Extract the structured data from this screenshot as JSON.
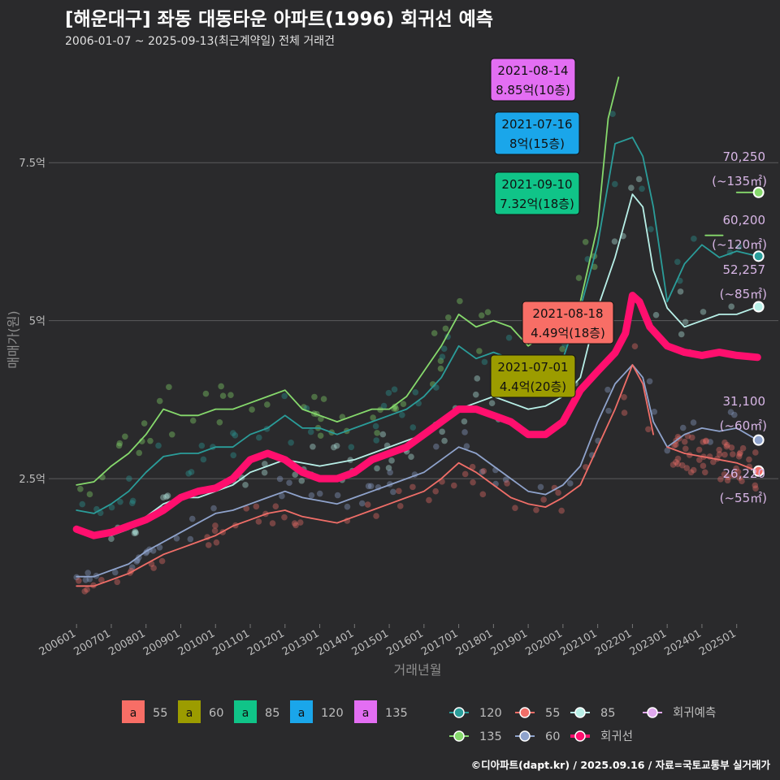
{
  "header": {
    "title": "[해운대구] 좌동 대동타운 아파트(1996) 회귀선 예측",
    "subtitle": "2006-01-07 ~ 2025-09-13(최근계약일) 전체 거래건",
    "credit": "©디아파트(dapt.kr) / 2025.09.16 / 자료=국토교통부 실거래가"
  },
  "chart_data": {
    "type": "line",
    "xlabel": "거래년월",
    "ylabel": "매매가(원)",
    "x_ticks": [
      "200601",
      "200701",
      "200801",
      "200901",
      "201001",
      "201101",
      "201201",
      "201301",
      "201401",
      "201501",
      "201601",
      "201701",
      "201801",
      "201901",
      "202001",
      "202101",
      "202201",
      "202301",
      "202401",
      "202501"
    ],
    "y_ticks": [
      {
        "value": 2.5,
        "label": "2.5억"
      },
      {
        "value": 5,
        "label": "5억"
      },
      {
        "value": 7.5,
        "label": "7.5억"
      }
    ],
    "ylim": [
      0.2,
      9.2
    ],
    "xlim": [
      2005.2,
      2026.2
    ],
    "series": [
      {
        "name": "135",
        "color": "#86d96c",
        "x": [
          2006.0,
          2006.5,
          2007.0,
          2007.5,
          2008.0,
          2008.5,
          2009.0,
          2009.5,
          2010.0,
          2010.5,
          2011.0,
          2011.5,
          2012.0,
          2012.5,
          2013.0,
          2013.5,
          2014.0,
          2014.5,
          2015.0,
          2015.5,
          2016.0,
          2016.5,
          2017.0,
          2017.5,
          2018.0,
          2018.5,
          2019.0,
          2019.5,
          2020.0,
          2020.5,
          2021.0,
          2021.3,
          2021.6
        ],
        "y": [
          2.4,
          2.45,
          2.7,
          2.9,
          3.2,
          3.6,
          3.5,
          3.5,
          3.6,
          3.6,
          3.7,
          3.8,
          3.9,
          3.6,
          3.5,
          3.4,
          3.5,
          3.6,
          3.6,
          3.8,
          4.2,
          4.6,
          5.1,
          4.9,
          5.0,
          4.9,
          4.6,
          4.8,
          4.8,
          5.3,
          6.5,
          8.2,
          8.85
        ]
      },
      {
        "name": "135",
        "color": "#86d96c",
        "x": [
          2024.1,
          2024.6
        ],
        "y": [
          6.35,
          6.35
        ]
      },
      {
        "name": "135",
        "color": "#86d96c",
        "x": [
          2025.0,
          2025.6
        ],
        "y": [
          7.03,
          7.03
        ]
      },
      {
        "name": "120",
        "color": "#2a9d9a",
        "x": [
          2006.0,
          2006.5,
          2007.0,
          2007.5,
          2008.0,
          2008.5,
          2009.0,
          2009.5,
          2010.0,
          2010.5,
          2011.0,
          2011.5,
          2012.0,
          2012.5,
          2013.0,
          2013.5,
          2014.0,
          2014.5,
          2015.0,
          2015.5,
          2016.0,
          2016.5,
          2017.0,
          2017.5,
          2018.0,
          2018.5,
          2019.0,
          2019.5,
          2020.0,
          2020.5,
          2021.0,
          2021.5,
          2022.0,
          2022.3,
          2022.6,
          2023.0,
          2023.5,
          2024.0,
          2024.5,
          2025.0,
          2025.6
        ],
        "y": [
          2.0,
          1.95,
          2.1,
          2.3,
          2.6,
          2.85,
          2.9,
          2.9,
          3.0,
          3.0,
          3.2,
          3.3,
          3.5,
          3.3,
          3.3,
          3.2,
          3.3,
          3.4,
          3.5,
          3.6,
          3.8,
          4.1,
          4.6,
          4.4,
          4.5,
          4.4,
          4.1,
          4.3,
          4.4,
          5.2,
          6.2,
          7.8,
          7.9,
          7.6,
          6.8,
          5.3,
          5.9,
          6.2,
          6.0,
          6.1,
          6.02
        ]
      },
      {
        "name": "85",
        "color": "#b8f0e8",
        "x": [
          2006.0,
          2006.5,
          2007.0,
          2007.5,
          2008.0,
          2008.5,
          2009.0,
          2009.5,
          2010.0,
          2010.5,
          2011.0,
          2011.5,
          2012.0,
          2012.5,
          2013.0,
          2013.5,
          2014.0,
          2014.5,
          2015.0,
          2015.5,
          2016.0,
          2016.5,
          2017.0,
          2017.5,
          2018.0,
          2018.5,
          2019.0,
          2019.5,
          2020.0,
          2020.5,
          2021.0,
          2021.5,
          2022.0,
          2022.3,
          2022.6,
          2023.0,
          2023.5,
          2024.0,
          2024.5,
          2025.0,
          2025.6
        ],
        "y": [
          1.7,
          1.6,
          1.6,
          1.7,
          1.9,
          2.1,
          2.2,
          2.2,
          2.3,
          2.4,
          2.6,
          2.7,
          2.8,
          2.75,
          2.7,
          2.75,
          2.8,
          2.9,
          3.0,
          3.1,
          3.2,
          3.4,
          3.6,
          3.7,
          3.8,
          3.7,
          3.6,
          3.65,
          3.8,
          4.1,
          5.2,
          6.0,
          7.0,
          6.8,
          5.8,
          5.2,
          4.9,
          5.0,
          5.1,
          5.1,
          5.22
        ]
      },
      {
        "name": "60",
        "color": "#8fa3cc",
        "x": [
          2006.0,
          2006.5,
          2007.0,
          2007.5,
          2008.0,
          2008.5,
          2009.0,
          2009.5,
          2010.0,
          2010.5,
          2011.0,
          2011.5,
          2012.0,
          2012.5,
          2013.0,
          2013.5,
          2014.0,
          2014.5,
          2015.0,
          2015.5,
          2016.0,
          2016.5,
          2017.0,
          2017.5,
          2018.0,
          2018.5,
          2019.0,
          2019.5,
          2020.0,
          2020.5,
          2021.0,
          2021.5,
          2022.0,
          2022.3,
          2022.6,
          2023.0,
          2023.5,
          2024.0,
          2024.5,
          2025.0,
          2025.6
        ],
        "y": [
          0.95,
          0.95,
          1.05,
          1.15,
          1.35,
          1.5,
          1.65,
          1.8,
          1.95,
          2.0,
          2.1,
          2.2,
          2.3,
          2.2,
          2.15,
          2.1,
          2.2,
          2.3,
          2.4,
          2.5,
          2.6,
          2.8,
          3.0,
          2.9,
          2.7,
          2.5,
          2.3,
          2.25,
          2.4,
          2.7,
          3.4,
          4.0,
          4.3,
          4.1,
          3.4,
          3.0,
          3.2,
          3.3,
          3.25,
          3.3,
          3.11
        ]
      },
      {
        "name": "55",
        "color": "#f06e68",
        "x": [
          2006.0,
          2006.5,
          2007.0,
          2007.5,
          2008.0,
          2008.5,
          2009.0,
          2009.5,
          2010.0,
          2010.5,
          2011.0,
          2011.5,
          2012.0,
          2012.5,
          2013.0,
          2013.5,
          2014.0,
          2014.5,
          2015.0,
          2015.5,
          2016.0,
          2016.5,
          2017.0,
          2017.5,
          2018.0,
          2018.5,
          2019.0,
          2019.5,
          2020.0,
          2020.5,
          2021.0,
          2021.5,
          2022.0,
          2022.3,
          2022.6
        ],
        "y": [
          0.8,
          0.8,
          0.9,
          1.0,
          1.15,
          1.3,
          1.4,
          1.5,
          1.6,
          1.75,
          1.85,
          1.95,
          2.0,
          1.9,
          1.85,
          1.8,
          1.9,
          2.0,
          2.1,
          2.2,
          2.3,
          2.5,
          2.75,
          2.6,
          2.4,
          2.2,
          2.1,
          2.05,
          2.2,
          2.4,
          3.0,
          3.6,
          4.3,
          4.0,
          3.2
        ]
      },
      {
        "name": "55",
        "color": "#f06e68",
        "x": [
          2023.0,
          2023.5,
          2024.0,
          2024.5,
          2025.0,
          2025.6
        ],
        "y": [
          3.0,
          2.9,
          2.85,
          2.8,
          2.75,
          2.62
        ]
      },
      {
        "name": "회귀선",
        "color": "#ff0f6e",
        "x": [
          2006.0,
          2006.5,
          2007.0,
          2007.5,
          2008.0,
          2008.5,
          2009.0,
          2009.5,
          2010.0,
          2010.5,
          2011.0,
          2011.5,
          2012.0,
          2012.5,
          2013.0,
          2013.5,
          2014.0,
          2014.5,
          2015.0,
          2015.5,
          2016.0,
          2016.5,
          2017.0,
          2017.5,
          2018.0,
          2018.5,
          2019.0,
          2019.5,
          2020.0,
          2020.5,
          2021.0,
          2021.5,
          2021.8,
          2022.0,
          2022.2,
          2022.5,
          2023.0,
          2023.5,
          2024.0,
          2024.5,
          2025.0,
          2025.6
        ],
        "y": [
          1.7,
          1.6,
          1.65,
          1.75,
          1.85,
          2.0,
          2.2,
          2.3,
          2.35,
          2.5,
          2.8,
          2.9,
          2.8,
          2.6,
          2.5,
          2.5,
          2.6,
          2.8,
          2.9,
          3.0,
          3.2,
          3.4,
          3.6,
          3.6,
          3.5,
          3.4,
          3.2,
          3.2,
          3.4,
          3.9,
          4.2,
          4.49,
          4.8,
          5.4,
          5.3,
          4.9,
          4.6,
          4.5,
          4.45,
          4.5,
          4.45,
          4.42
        ]
      }
    ],
    "end_labels": [
      {
        "value": 7.03,
        "color": "#86d96c",
        "price": "70,250",
        "area": "(~135㎡)"
      },
      {
        "value": 6.02,
        "color": "#2a9d9a",
        "price": "60,200",
        "area": "(~120㎡)"
      },
      {
        "value": 5.22,
        "color": "#b8f0e8",
        "price": "52,257",
        "area": "(~85㎡)"
      },
      {
        "value": 3.11,
        "color": "#8fa3cc",
        "price": "31,100",
        "area": "(~60㎡)"
      },
      {
        "value": 2.62,
        "color": "#f06e68",
        "price": "26,220",
        "area": "(~55㎡)"
      }
    ],
    "annotations": [
      {
        "date": "2021-08-14",
        "price": "8.85억(10층)",
        "color": "#e36ef3",
        "x": 2021.62,
        "y": 8.85
      },
      {
        "date": "2021-07-16",
        "price": "8억(15층)",
        "color": "#1aa6ea",
        "x": 2021.54,
        "y": 8.0
      },
      {
        "date": "2021-09-10",
        "price": "7.32억(18층)",
        "color": "#10c488",
        "x": 2021.69,
        "y": 7.32
      },
      {
        "date": "2021-08-18",
        "price": "4.49억(18층)",
        "color": "#f86e66",
        "x": 2021.63,
        "y": 4.49
      },
      {
        "date": "2021-07-01",
        "price": "4.4억(20층)",
        "color": "#9c9c00",
        "x": 2021.5,
        "y": 4.4
      }
    ],
    "legend_boxes": [
      {
        "key": "a",
        "label": "55",
        "color": "#f86e66"
      },
      {
        "key": "a",
        "label": "60",
        "color": "#9c9c00"
      },
      {
        "key": "a",
        "label": "85",
        "color": "#10c488"
      },
      {
        "key": "a",
        "label": "120",
        "color": "#1aa6ea"
      },
      {
        "key": "a",
        "label": "135",
        "color": "#e36ef3"
      }
    ],
    "legend_lines": [
      {
        "label": "120",
        "color": "#2a9d9a"
      },
      {
        "label": "55",
        "color": "#f06e68"
      },
      {
        "label": "85",
        "color": "#b8f0e8"
      },
      {
        "label": "회귀예측",
        "color": "#e0a8ee"
      },
      {
        "label": "135",
        "color": "#86d96c"
      },
      {
        "label": "60",
        "color": "#8fa3cc"
      },
      {
        "label": "회귀선",
        "color": "#ff0f6e"
      }
    ],
    "legend_position": "bottom",
    "grid": true
  }
}
